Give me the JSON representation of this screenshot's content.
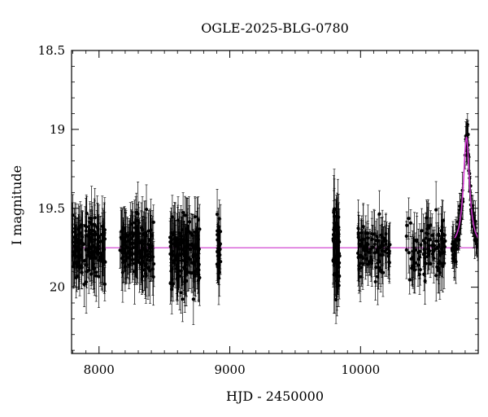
{
  "chart_data": {
    "type": "scatter",
    "title": "OGLE-2025-BLG-0780",
    "xlabel": "HJD - 2450000",
    "ylabel": "I magnitude",
    "xlim": [
      7790,
      10900
    ],
    "ylim": [
      20.42,
      18.5
    ],
    "y_inverted": true,
    "xticks": [
      {
        "value": 8000,
        "label": "8000"
      },
      {
        "value": 9000,
        "label": "9000"
      },
      {
        "value": 10000,
        "label": "10000"
      }
    ],
    "yticks": [
      {
        "value": 18.5,
        "label": "18.5"
      },
      {
        "value": 19,
        "label": "19"
      },
      {
        "value": 19.5,
        "label": "19.5"
      },
      {
        "value": 20,
        "label": "20"
      }
    ],
    "baseline_mag": 19.75,
    "model": {
      "name": "",
      "color": "#cc33cc",
      "peak_hjd": 10810,
      "peak_mag": 19.05,
      "baseline_mag": 19.75
    },
    "data_color": "#000000",
    "grid": false,
    "legend": "none",
    "seasons": [
      {
        "start": 7795,
        "end": 8050,
        "count": 150,
        "mean_mag": 19.75,
        "scatter": 0.14,
        "err": 0.15
      },
      {
        "start": 8160,
        "end": 8420,
        "count": 150,
        "mean_mag": 19.75,
        "scatter": 0.14,
        "err": 0.15
      },
      {
        "start": 8540,
        "end": 8770,
        "count": 150,
        "mean_mag": 19.77,
        "scatter": 0.15,
        "err": 0.16
      },
      {
        "start": 8900,
        "end": 8930,
        "count": 30,
        "mean_mag": 19.78,
        "scatter": 0.14,
        "err": 0.13
      },
      {
        "start": 9790,
        "end": 9840,
        "count": 60,
        "mean_mag": 19.78,
        "scatter": 0.18,
        "err": 0.18
      },
      {
        "start": 9975,
        "end": 10230,
        "count": 100,
        "mean_mag": 19.76,
        "scatter": 0.13,
        "err": 0.13
      },
      {
        "start": 10350,
        "end": 10650,
        "count": 100,
        "mean_mag": 19.77,
        "scatter": 0.13,
        "err": 0.13
      },
      {
        "start": 10700,
        "end": 10900,
        "count": 90,
        "mean_mag": 19.77,
        "scatter": 0.06,
        "err": 0.1
      }
    ]
  }
}
